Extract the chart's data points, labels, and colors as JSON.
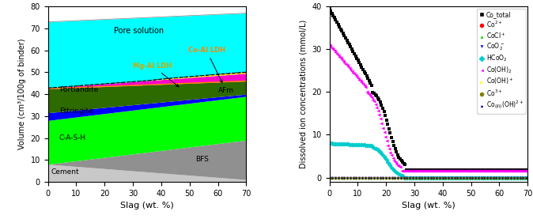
{
  "left": {
    "xlabel": "Slag (wt. %)",
    "ylabel": "Volume (cm³/100g of binder)",
    "ylim": [
      0,
      80
    ],
    "xlim": [
      0,
      70
    ],
    "xticks": [
      0,
      10,
      20,
      30,
      40,
      50,
      60,
      70
    ],
    "yticks": [
      0,
      10,
      20,
      30,
      40,
      50,
      60,
      70,
      80
    ],
    "colors": {
      "Cement": "#c8c8c8",
      "BFS": "#909090",
      "C-A-S-H": "#00ff00",
      "Ettringite": "#0000ff",
      "Portlandite": "#2d6a00",
      "AFm": "#ff00cc",
      "Mg-Al LDH": "#ffdd00",
      "Co-Al LDH": "#ff8800",
      "Pore solution": "#00ffff"
    }
  },
  "right": {
    "xlabel": "Slag (wt. %)",
    "ylabel": "Dissolved ion concentrations (mmol/L)",
    "ylim": [
      -1,
      40
    ],
    "xlim": [
      0,
      70
    ],
    "xticks": [
      0,
      10,
      20,
      30,
      40,
      50,
      60,
      70
    ],
    "yticks": [
      0,
      10,
      20,
      30,
      40
    ]
  }
}
